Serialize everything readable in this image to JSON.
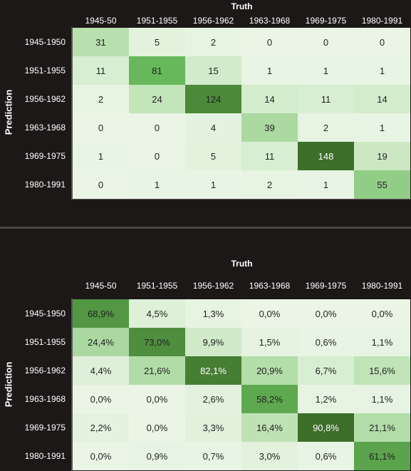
{
  "chart_data": [
    {
      "type": "heatmap",
      "title": "",
      "xlabel": "Truth",
      "ylabel": "Prediction",
      "x_categories": [
        "1945-50",
        "1951-1955",
        "1956-1962",
        "1963-1968",
        "1969-1975",
        "1980-1991"
      ],
      "y_categories": [
        "1945-1950",
        "1951-1955",
        "1956-1962",
        "1963-1968",
        "1969-1975",
        "1980-1991"
      ],
      "values": [
        [
          31,
          5,
          2,
          0,
          0,
          0
        ],
        [
          11,
          81,
          15,
          1,
          1,
          1
        ],
        [
          2,
          24,
          124,
          14,
          11,
          14
        ],
        [
          0,
          0,
          4,
          39,
          2,
          1
        ],
        [
          1,
          0,
          5,
          11,
          148,
          19
        ],
        [
          0,
          1,
          1,
          2,
          1,
          55
        ]
      ],
      "labels": [
        [
          "31",
          "5",
          "2",
          "0",
          "0",
          "0"
        ],
        [
          "11",
          "81",
          "15",
          "1",
          "1",
          "1"
        ],
        [
          "2",
          "24",
          "124",
          "14",
          "11",
          "14"
        ],
        [
          "0",
          "0",
          "4",
          "39",
          "2",
          "1"
        ],
        [
          "1",
          "0",
          "5",
          "11",
          "148",
          "19"
        ],
        [
          "0",
          "1",
          "1",
          "2",
          "1",
          "55"
        ]
      ]
    },
    {
      "type": "heatmap",
      "title": "",
      "xlabel": "Truth",
      "ylabel": "Prediction",
      "x_categories": [
        "1945-50",
        "1951-1955",
        "1956-1962",
        "1963-1968",
        "1969-1975",
        "1980-1991"
      ],
      "y_categories": [
        "1945-1950",
        "1951-1955",
        "1956-1962",
        "1963-1968",
        "1969-1975",
        "1980-1991"
      ],
      "values": [
        [
          68.9,
          4.5,
          1.3,
          0.0,
          0.0,
          0.0
        ],
        [
          24.4,
          73.0,
          9.9,
          1.5,
          0.6,
          1.1
        ],
        [
          4.4,
          21.6,
          82.1,
          20.9,
          6.7,
          15.6
        ],
        [
          0.0,
          0.0,
          2.6,
          58.2,
          1.2,
          1.1
        ],
        [
          2.2,
          0.0,
          3.3,
          16.4,
          90.8,
          21.1
        ],
        [
          0.0,
          0.9,
          0.7,
          3.0,
          0.6,
          61.1
        ]
      ],
      "labels": [
        [
          "68,9%",
          "4,5%",
          "1,3%",
          "0,0%",
          "0,0%",
          "0,0%"
        ],
        [
          "24,4%",
          "73,0%",
          "9,9%",
          "1,5%",
          "0,6%",
          "1,1%"
        ],
        [
          "4,4%",
          "21,6%",
          "82,1%",
          "20,9%",
          "6,7%",
          "15,6%"
        ],
        [
          "0,0%",
          "0,0%",
          "2,6%",
          "58,2%",
          "1,2%",
          "1,1%"
        ],
        [
          "2,2%",
          "0,0%",
          "3,3%",
          "16,4%",
          "90,8%",
          "21,1%"
        ],
        [
          "0,0%",
          "0,9%",
          "0,7%",
          "3,0%",
          "0,6%",
          "61,1%"
        ]
      ]
    }
  ],
  "colors": {
    "background": "#1c1818",
    "cell_lightest": "#eaf5e6",
    "cell_light": "#c6e6bd",
    "cell_mid": "#66b85a",
    "cell_dark": "#3d6e2a",
    "text_on_light": "#222222",
    "text_on_dark": "#ffffff"
  }
}
